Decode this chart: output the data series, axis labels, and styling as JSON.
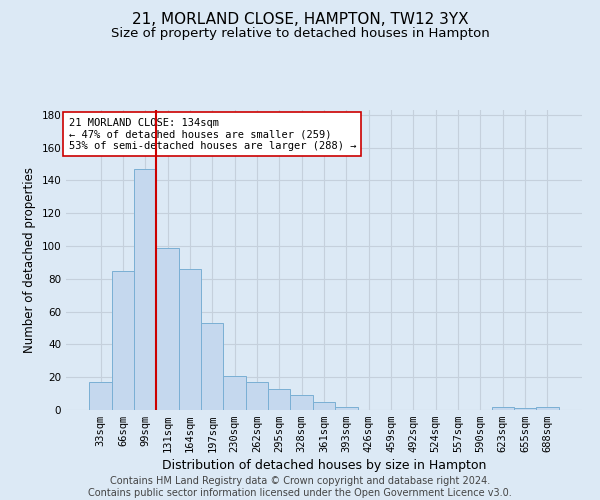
{
  "title1": "21, MORLAND CLOSE, HAMPTON, TW12 3YX",
  "title2": "Size of property relative to detached houses in Hampton",
  "xlabel": "Distribution of detached houses by size in Hampton",
  "ylabel": "Number of detached properties",
  "bin_labels": [
    "33sqm",
    "66sqm",
    "99sqm",
    "131sqm",
    "164sqm",
    "197sqm",
    "230sqm",
    "262sqm",
    "295sqm",
    "328sqm",
    "361sqm",
    "393sqm",
    "426sqm",
    "459sqm",
    "492sqm",
    "524sqm",
    "557sqm",
    "590sqm",
    "623sqm",
    "655sqm",
    "688sqm"
  ],
  "bar_heights": [
    17,
    85,
    147,
    99,
    86,
    53,
    21,
    17,
    13,
    9,
    5,
    2,
    0,
    0,
    0,
    0,
    0,
    0,
    2,
    1,
    2
  ],
  "bar_color": "#c5d8ee",
  "bar_edgecolor": "#7aafd4",
  "bar_linewidth": 0.7,
  "vline_color": "#cc0000",
  "vline_x_index": 2.5,
  "annotation_text": "21 MORLAND CLOSE: 134sqm\n← 47% of detached houses are smaller (259)\n53% of semi-detached houses are larger (288) →",
  "annotation_box_facecolor": "#ffffff",
  "annotation_box_edgecolor": "#cc0000",
  "ylim_max": 183,
  "yticks": [
    0,
    20,
    40,
    60,
    80,
    100,
    120,
    140,
    160,
    180
  ],
  "background_color": "#dce9f5",
  "grid_color": "#c5d0dc",
  "footer_line1": "Contains HM Land Registry data © Crown copyright and database right 2024.",
  "footer_line2": "Contains public sector information licensed under the Open Government Licence v3.0.",
  "title1_fontsize": 11,
  "title2_fontsize": 9.5,
  "xlabel_fontsize": 9,
  "ylabel_fontsize": 8.5,
  "tick_fontsize": 7.5,
  "annot_fontsize": 7.5,
  "footer_fontsize": 7
}
